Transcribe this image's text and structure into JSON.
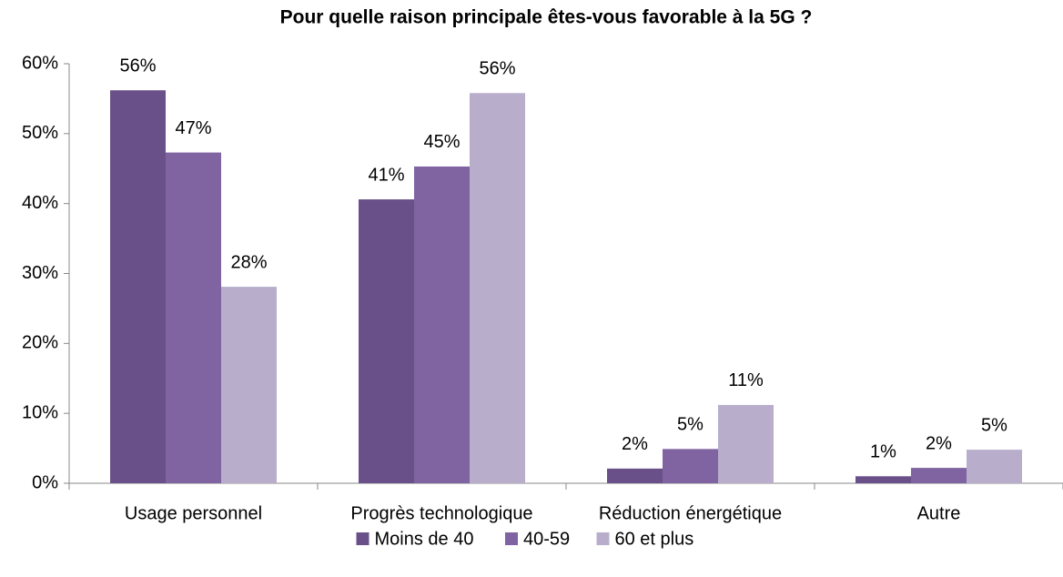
{
  "chart_data": {
    "type": "bar",
    "title": "Pour quelle raison principale êtes-vous favorable à la 5G ?",
    "categories": [
      "Usage personnel",
      "Progrès technologique",
      "Réduction énergétique",
      "Autre"
    ],
    "series": [
      {
        "name": "Moins de 40",
        "color": "#6a5088",
        "values": [
          56.2,
          40.6,
          2.1,
          1.0
        ],
        "value_labels": [
          "56%",
          "41%",
          "2%",
          "1%"
        ]
      },
      {
        "name": "40-59",
        "color": "#8064a2",
        "values": [
          47.3,
          45.3,
          4.9,
          2.2
        ],
        "value_labels": [
          "47%",
          "45%",
          "5%",
          "2%"
        ]
      },
      {
        "name": "60 et plus",
        "color": "#b8aecc",
        "values": [
          28.1,
          55.8,
          11.2,
          4.8
        ],
        "value_labels": [
          "28%",
          "56%",
          "11%",
          "5%"
        ]
      }
    ],
    "ylim": [
      0,
      60
    ],
    "yticks": [
      {
        "value": 0,
        "label": "0%"
      },
      {
        "value": 10,
        "label": "10%"
      },
      {
        "value": 20,
        "label": "20%"
      },
      {
        "value": 30,
        "label": "30%"
      },
      {
        "value": 40,
        "label": "40%"
      },
      {
        "value": 50,
        "label": "50%"
      },
      {
        "value": 60,
        "label": "60%"
      }
    ],
    "legend": "bottom"
  }
}
